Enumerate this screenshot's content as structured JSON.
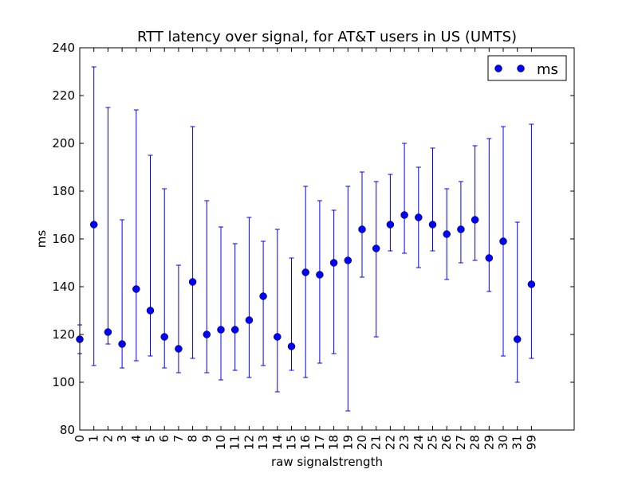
{
  "chart_data": {
    "type": "scatter",
    "title": "RTT latency over signal, for AT&T users in US (UMTS)",
    "xlabel": "raw signalstrength",
    "ylabel": "ms",
    "ylim": [
      80,
      240
    ],
    "yticks": [
      "80",
      "100",
      "120",
      "140",
      "160",
      "180",
      "200",
      "220",
      "240"
    ],
    "grid": false,
    "legend": {
      "placement": "top-right",
      "label": "ms"
    },
    "categories": [
      "0",
      "1",
      "2",
      "3",
      "4",
      "5",
      "6",
      "7",
      "8",
      "9",
      "10",
      "11",
      "12",
      "13",
      "14",
      "15",
      "16",
      "17",
      "18",
      "19",
      "20",
      "21",
      "22",
      "23",
      "24",
      "25",
      "26",
      "27",
      "28",
      "29",
      "30",
      "31",
      "99"
    ],
    "series": [
      {
        "name": "ms",
        "color": "#0000ff",
        "marker": "circle",
        "values": [
          118,
          166,
          121,
          116,
          139,
          130,
          119,
          114,
          142,
          120,
          122,
          122,
          126,
          136,
          119,
          115,
          146,
          145,
          150,
          151,
          164,
          156,
          166,
          170,
          169,
          166,
          162,
          164,
          168,
          152,
          159,
          118,
          141
        ],
        "error_low": [
          112,
          107,
          116,
          106,
          109,
          111,
          106,
          104,
          110,
          104,
          101,
          105,
          102,
          107,
          96,
          105,
          102,
          108,
          112,
          88,
          144,
          119,
          155,
          154,
          148,
          155,
          143,
          150,
          151,
          138,
          111,
          100,
          110
        ],
        "error_high": [
          124,
          232,
          215,
          168,
          214,
          195,
          181,
          149,
          207,
          176,
          165,
          158,
          169,
          159,
          164,
          152,
          182,
          176,
          172,
          182,
          188,
          184,
          187,
          200,
          190,
          198,
          181,
          184,
          199,
          202,
          207,
          167,
          208
        ]
      }
    ]
  }
}
